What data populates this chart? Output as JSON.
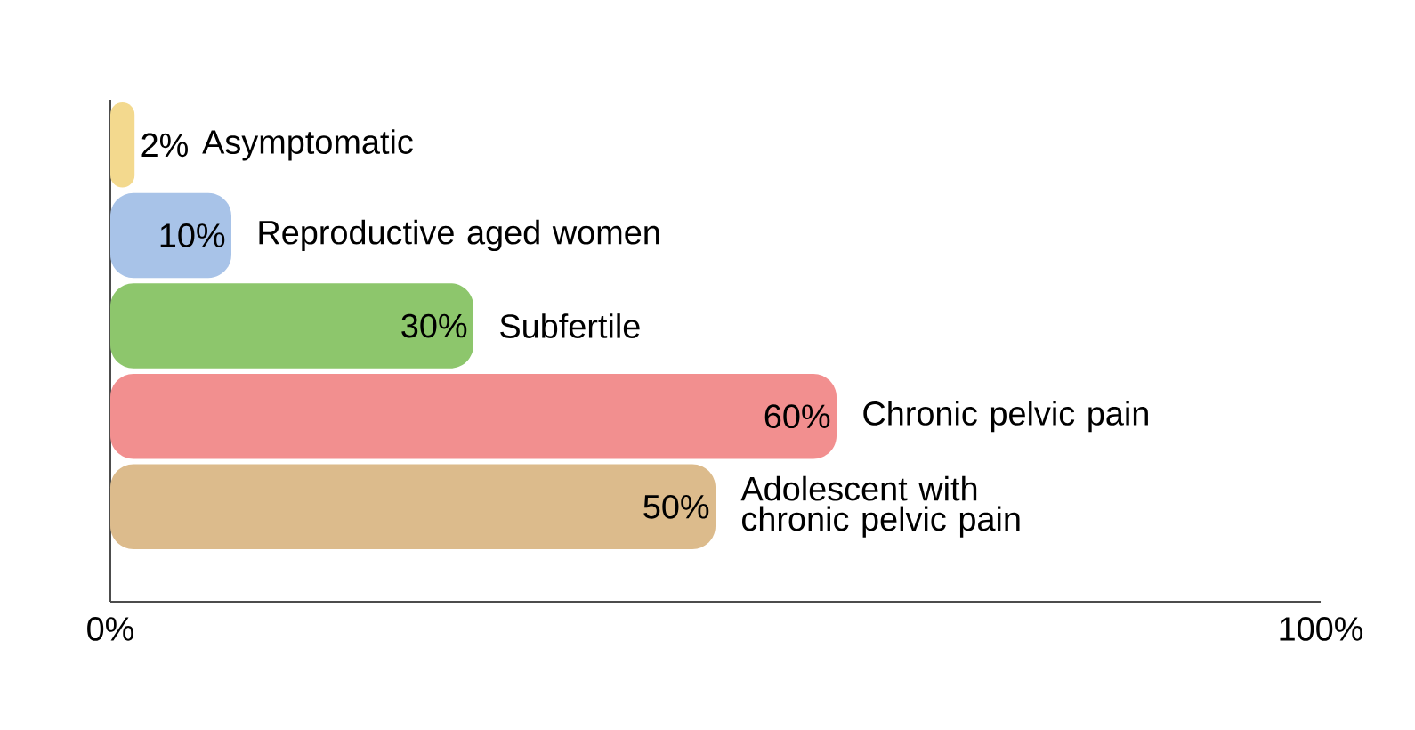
{
  "chart_data": {
    "type": "bar",
    "orientation": "horizontal",
    "categories": [
      "Asymptomatic",
      "Reproductive aged women",
      "Subfertile",
      "Chronic pelvic pain",
      "Adolescent with chronic pelvic pain"
    ],
    "values": [
      2,
      10,
      30,
      60,
      50
    ],
    "value_labels": [
      "2%",
      "10%",
      "30%",
      "60%",
      "50%"
    ],
    "colors": [
      "#f3d98e",
      "#a8c3e8",
      "#8dc66c",
      "#f28f8f",
      "#dcbb8c"
    ],
    "xlim": [
      0,
      100
    ],
    "xticks": [
      {
        "value": 0,
        "label": "0%"
      },
      {
        "value": 100,
        "label": "100%"
      }
    ],
    "grid": false
  }
}
